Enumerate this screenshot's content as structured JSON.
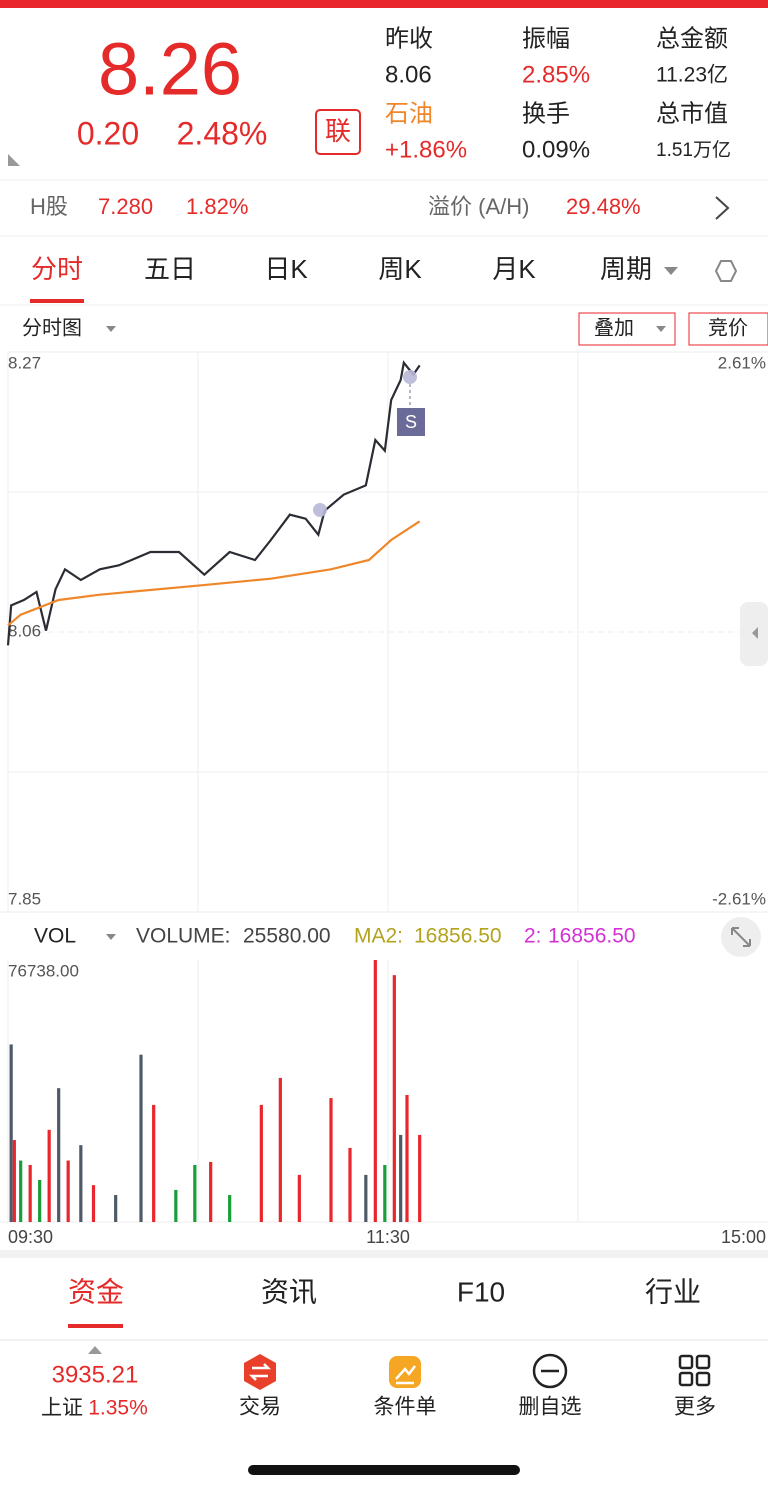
{
  "header": {
    "price": "8.26",
    "change": "0.20",
    "change_pct": "2.48%",
    "badge": "联",
    "stats": [
      {
        "label": "昨收",
        "value": "8.06"
      },
      {
        "label": "振幅",
        "value": "2.85%"
      },
      {
        "label": "总金额",
        "value": "11.23亿"
      },
      {
        "label": "石油",
        "value": "+1.86%"
      },
      {
        "label": "换手",
        "value": "0.09%"
      },
      {
        "label": "总市值",
        "value": "1.51万亿"
      }
    ]
  },
  "h_share": {
    "label": "H股",
    "price": "7.280",
    "pct": "1.82%",
    "premium_label": "溢价 (A/H)",
    "premium": "29.48%"
  },
  "tabs": [
    "分时",
    "五日",
    "日K",
    "周K",
    "月K",
    "周期"
  ],
  "toolbar": {
    "mode": "分时图",
    "overlay": "叠加",
    "auction": "竞价",
    "marker": "S"
  },
  "volume_header": {
    "label": "VOL",
    "volume_label": "VOLUME:",
    "volume": "25580.00",
    "ma_label": "MA2:",
    "ma": "16856.50",
    "ma2_label": "2:",
    "ma2": "16856.50"
  },
  "chart_data": [
    {
      "type": "line",
      "xlim": [
        0,
        240
      ],
      "ylim": [
        7.85,
        8.27
      ],
      "yticks": [
        7.85,
        8.06,
        8.27
      ],
      "y2lim": [
        -2.61,
        2.61
      ],
      "y2ticks": [
        {
          "value": -2.61,
          "label": "-2.61%"
        },
        {
          "value": 2.61,
          "label": "2.61%"
        }
      ],
      "series": [
        {
          "color": "#2a2d33",
          "x": [
            0,
            1,
            5,
            9,
            12,
            15,
            18,
            23,
            29,
            35,
            45,
            54,
            62,
            70,
            78,
            83,
            89,
            94,
            98,
            100,
            106,
            113,
            116,
            119,
            121,
            124,
            125,
            128,
            130
          ],
          "values": [
            8.05,
            8.08,
            8.084,
            8.09,
            8.061,
            8.092,
            8.107,
            8.099,
            8.107,
            8.11,
            8.12,
            8.12,
            8.103,
            8.12,
            8.114,
            8.129,
            8.148,
            8.145,
            8.133,
            8.151,
            8.163,
            8.17,
            8.204,
            8.196,
            8.234,
            8.249,
            8.262,
            8.253,
            8.26
          ]
        },
        {
          "color": "#f0862a",
          "x": [
            0,
            4,
            16,
            29,
            61,
            83,
            102,
            114,
            121,
            130
          ],
          "values": [
            8.065,
            8.073,
            8.084,
            8.088,
            8.095,
            8.1,
            8.107,
            8.114,
            8.129,
            8.143
          ]
        }
      ]
    },
    {
      "type": "bar",
      "xlim": [
        0,
        240
      ],
      "xticks": [
        {
          "value": 0,
          "label": "09:30"
        },
        {
          "value": 120,
          "label": "11:30"
        },
        {
          "value": 240,
          "label": "15:00"
        }
      ],
      "ylim": [
        0,
        76738
      ],
      "yticks": [
        {
          "value": 76738,
          "label": "76738.00"
        }
      ],
      "x": [
        1,
        2,
        4,
        7,
        10,
        13,
        16,
        19,
        23,
        27,
        34,
        42,
        46,
        53,
        59,
        64,
        70,
        80,
        86,
        92,
        102,
        108,
        113,
        116,
        119,
        122,
        124,
        126,
        130
      ],
      "values": [
        52000,
        24000,
        18000,
        16700,
        12300,
        27000,
        39200,
        18000,
        22500,
        10800,
        7900,
        49000,
        34300,
        9400,
        16700,
        17600,
        7900,
        34300,
        42200,
        13800,
        36300,
        21700,
        13800,
        76738,
        16700,
        72300,
        25500,
        37200,
        25500
      ],
      "colors": [
        "#4e5a68",
        "#e8262b",
        "#1a9e3a",
        "#e8262b",
        "#1a9e3a",
        "#e8262b",
        "#4e5a68",
        "#e8262b",
        "#4e5a68",
        "#e8262b",
        "#4e5a68",
        "#4e5a68",
        "#e8262b",
        "#1a9e3a",
        "#1a9e3a",
        "#e8262b",
        "#1a9e3a",
        "#e8262b",
        "#e8262b",
        "#e8262b",
        "#e8262b",
        "#e8262b",
        "#4e5a68",
        "#e8262b",
        "#1a9e3a",
        "#e8262b",
        "#4e5a68",
        "#e8262b",
        "#e8262b"
      ]
    }
  ],
  "bottom_tabs": [
    "资金",
    "资讯",
    "F10",
    "行业"
  ],
  "nav": {
    "index_value": "3935.21",
    "index_name": "上证",
    "index_pct": "1.35%",
    "items": [
      "交易",
      "条件单",
      "删自选",
      "更多"
    ]
  }
}
